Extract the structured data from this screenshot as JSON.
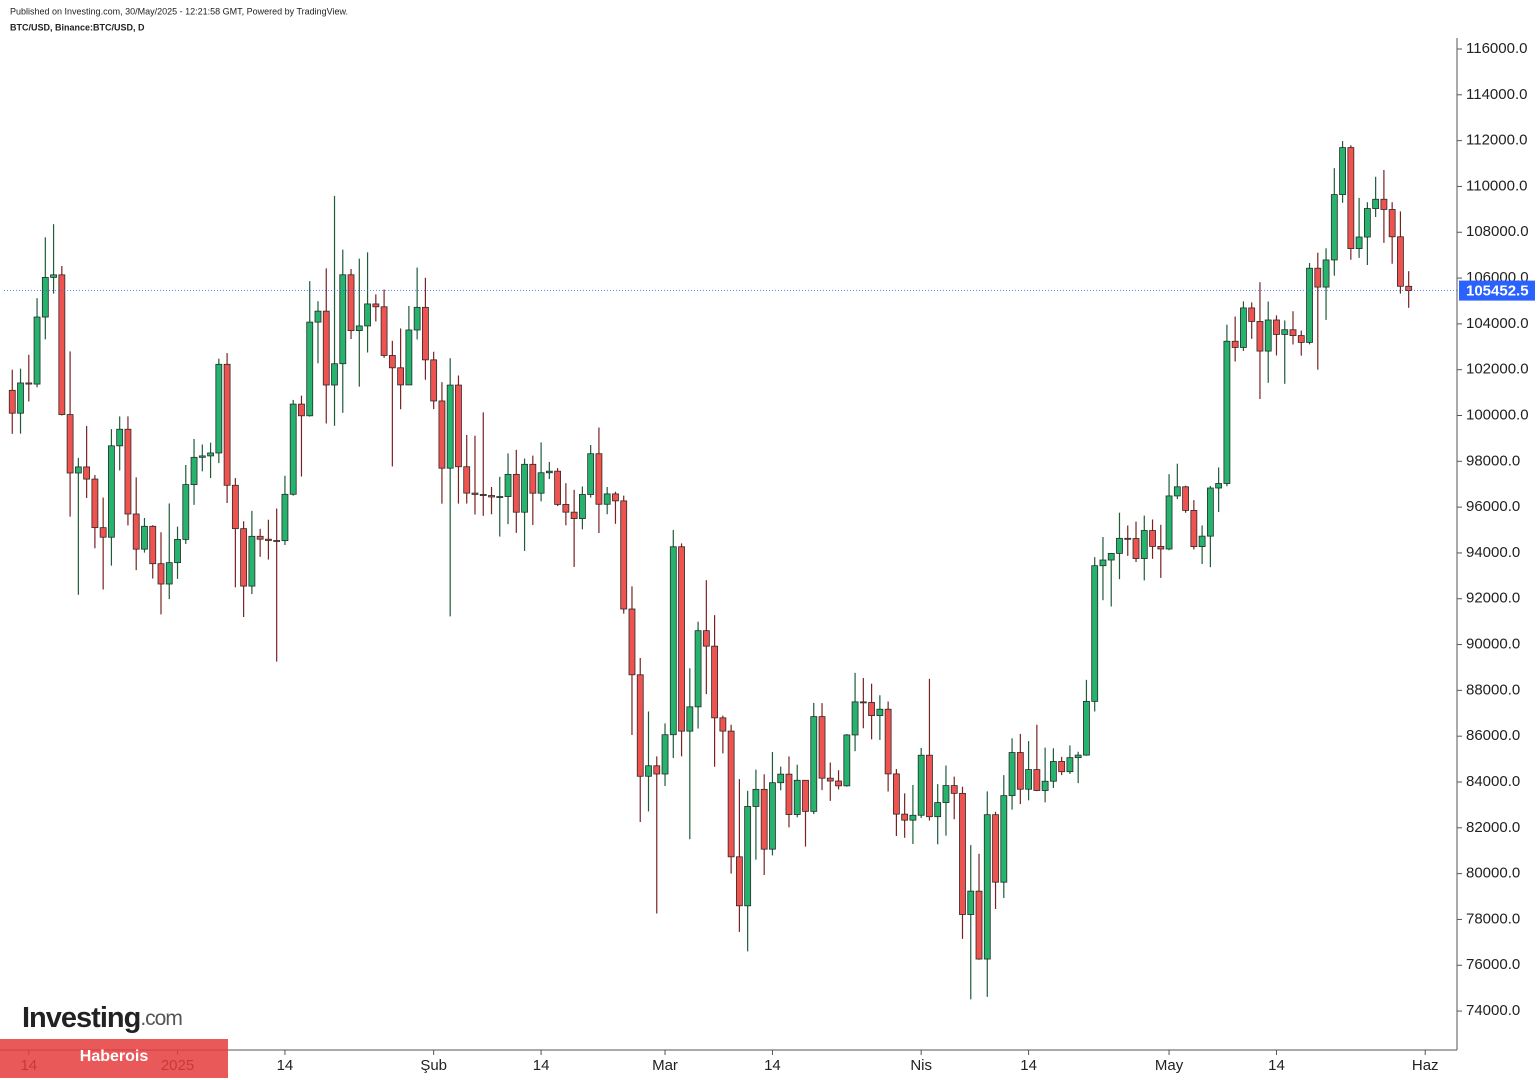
{
  "chart_data": {
    "type": "candlestick",
    "title": "BTC/USD, Binance:BTC/USD, D",
    "subtitle": "Published on Investing.com, 30/May/2025 - 12:21:58 GMT, Powered by TradingView.",
    "up_color": "#26b36d",
    "down_color": "#ef5350",
    "x": [
      "2024-12-12",
      "2024-12-13",
      "2024-12-14",
      "2024-12-15",
      "2024-12-16",
      "2024-12-17",
      "2024-12-18",
      "2024-12-19",
      "2024-12-20",
      "2024-12-21",
      "2024-12-22",
      "2024-12-23",
      "2024-12-24",
      "2024-12-25",
      "2024-12-26",
      "2024-12-27",
      "2024-12-28",
      "2024-12-29",
      "2024-12-30",
      "2024-12-31",
      "2025-01-01",
      "2025-01-02",
      "2025-01-03",
      "2025-01-04",
      "2025-01-05",
      "2025-01-06",
      "2025-01-07",
      "2025-01-08",
      "2025-01-09",
      "2025-01-10",
      "2025-01-11",
      "2025-01-12",
      "2025-01-13",
      "2025-01-14",
      "2025-01-15",
      "2025-01-16",
      "2025-01-17",
      "2025-01-18",
      "2025-01-19",
      "2025-01-20",
      "2025-01-21",
      "2025-01-22",
      "2025-01-23",
      "2025-01-24",
      "2025-01-25",
      "2025-01-26",
      "2025-01-27",
      "2025-01-28",
      "2025-01-29",
      "2025-01-30",
      "2025-01-31",
      "2025-02-01",
      "2025-02-02",
      "2025-02-03",
      "2025-02-04",
      "2025-02-05",
      "2025-02-06",
      "2025-02-07",
      "2025-02-08",
      "2025-02-09",
      "2025-02-10",
      "2025-02-11",
      "2025-02-12",
      "2025-02-13",
      "2025-02-14",
      "2025-02-15",
      "2025-02-16",
      "2025-02-17",
      "2025-02-18",
      "2025-02-19",
      "2025-02-20",
      "2025-02-21",
      "2025-02-22",
      "2025-02-23",
      "2025-02-24",
      "2025-02-25",
      "2025-02-26",
      "2025-02-27",
      "2025-02-28",
      "2025-03-01",
      "2025-03-02",
      "2025-03-03",
      "2025-03-04",
      "2025-03-05",
      "2025-03-06",
      "2025-03-07",
      "2025-03-08",
      "2025-03-09",
      "2025-03-10",
      "2025-03-11",
      "2025-03-12",
      "2025-03-13",
      "2025-03-14",
      "2025-03-15",
      "2025-03-16",
      "2025-03-17",
      "2025-03-18",
      "2025-03-19",
      "2025-03-20",
      "2025-03-21",
      "2025-03-22",
      "2025-03-23",
      "2025-03-24",
      "2025-03-25",
      "2025-03-26",
      "2025-03-27",
      "2025-03-28",
      "2025-03-29",
      "2025-03-30",
      "2025-03-31",
      "2025-04-01",
      "2025-04-02",
      "2025-04-03",
      "2025-04-04",
      "2025-04-05",
      "2025-04-06",
      "2025-04-07",
      "2025-04-08",
      "2025-04-09",
      "2025-04-10",
      "2025-04-11",
      "2025-04-12",
      "2025-04-13",
      "2025-04-14",
      "2025-04-15",
      "2025-04-16",
      "2025-04-17",
      "2025-04-18",
      "2025-04-19",
      "2025-04-20",
      "2025-04-21",
      "2025-04-22",
      "2025-04-23",
      "2025-04-24",
      "2025-04-25",
      "2025-04-26",
      "2025-04-27",
      "2025-04-28",
      "2025-04-29",
      "2025-04-30",
      "2025-05-01",
      "2025-05-02",
      "2025-05-03",
      "2025-05-04",
      "2025-05-05",
      "2025-05-06",
      "2025-05-07",
      "2025-05-08",
      "2025-05-09",
      "2025-05-10",
      "2025-05-11",
      "2025-05-12",
      "2025-05-13",
      "2025-05-14",
      "2025-05-15",
      "2025-05-16",
      "2025-05-17",
      "2025-05-18",
      "2025-05-19",
      "2025-05-20",
      "2025-05-21",
      "2025-05-22",
      "2025-05-23",
      "2025-05-24",
      "2025-05-25",
      "2025-05-26",
      "2025-05-27",
      "2025-05-28",
      "2025-05-29",
      "2025-05-30"
    ],
    "open": [
      101100,
      100100,
      101420,
      101372,
      104298,
      106029,
      106140,
      100041,
      97490,
      97755,
      97224,
      95104,
      94686,
      98676,
      99400,
      95700,
      94164,
      95163,
      93530,
      92643,
      93576,
      94591,
      96984,
      98174,
      98236,
      98364,
      102235,
      96954,
      95060,
      92552,
      94726,
      94599,
      94545,
      94536,
      96560,
      100497,
      99987,
      104077,
      104556,
      101331,
      102260,
      106143,
      103706,
      103910,
      104870,
      104746,
      102620,
      102082,
      101335,
      103733,
      104722,
      102429,
      100635,
      97700,
      101328,
      97763,
      96612,
      96554,
      96506,
      96444,
      96462,
      97430,
      95778,
      97869,
      96608,
      97500,
      97569,
      96118,
      95780,
      95500,
      96551,
      98331,
      96125,
      96577,
      96273,
      91552,
      88680,
      84250,
      84708,
      84349,
      86064,
      94270,
      86220,
      87281,
      90606,
      89931,
      86801,
      86222,
      80734,
      78595,
      82932,
      83680,
      81067,
      83969,
      84343,
      82580,
      84075,
      82718,
      86854,
      84167,
      84043,
      83832,
      86054,
      87498,
      87471,
      86900,
      87177,
      84353,
      82597,
      82334,
      82548,
      85169,
      82485,
      83102,
      83843,
      83504,
      78214,
      79235,
      76271,
      82573,
      79626,
      83404,
      85287,
      83684,
      84542,
      83629,
      84033,
      84895,
      84450,
      85063,
      85174,
      87519,
      93442,
      93691,
      93980,
      94638,
      94630,
      93755,
      94978,
      94284,
      94172,
      96489,
      96887,
      95856,
      94277,
      94733,
      96834,
      97032,
      103241,
      102971,
      104696,
      104106,
      102812,
      104169,
      103539,
      103744,
      103489,
      103191,
      106430,
      105606,
      106791,
      109643,
      111696,
      107287,
      107791,
      109035,
      109440,
      108994,
      107802,
      105641
    ],
    "high": [
      102000,
      102045,
      102650,
      105120,
      107780,
      108353,
      106524,
      102800,
      98150,
      99540,
      97400,
      96416,
      99404,
      99960,
      99963,
      97300,
      95525,
      95209,
      94903,
      96161,
      95150,
      97839,
      98976,
      98734,
      98813,
      102480,
      102724,
      97268,
      95382,
      95837,
      95050,
      95450,
      95940,
      97371,
      100681,
      100866,
      105865,
      104988,
      106422,
      109588,
      107240,
      106394,
      106850,
      107120,
      105286,
      105500,
      103260,
      103800,
      104782,
      106457,
      106012,
      102783,
      101456,
      102500,
      101745,
      99149,
      99120,
      100137,
      96880,
      97323,
      98345,
      98500,
      98119,
      98249,
      98826,
      97972,
      97704,
      97046,
      96753,
      96899,
      98711,
      99475,
      96880,
      96671,
      96503,
      92540,
      89414,
      87078,
      85120,
      86558,
      95000,
      94416,
      88967,
      91000,
      92810,
      91283,
      86897,
      86500,
      84123,
      83617,
      84539,
      84336,
      85309,
      84672,
      85117,
      84756,
      84075,
      87453,
      87443,
      84850,
      84513,
      86094,
      88765,
      88542,
      88292,
      87786,
      87515,
      84567,
      83505,
      83870,
      85487,
      88500,
      83909,
      84720,
      84234,
      83795,
      81243,
      80867,
      83588,
      82700,
      84300,
      85905,
      86100,
      85785,
      86500,
      85500,
      85470,
      85095,
      85597,
      85320,
      88460,
      93817,
      94696,
      94000,
      95758,
      95199,
      95369,
      95630,
      95461,
      95228,
      97437,
      97895,
      96935,
      96304,
      95199,
      96920,
      97732,
      103969,
      104324,
      104984,
      104937,
      105819,
      104976,
      104370,
      104150,
      104550,
      103709,
      106660,
      107108,
      107300,
      110797,
      111980,
      111800,
      109500,
      109310,
      110422,
      110718,
      109313,
      108910,
      106300
    ],
    "low": [
      99200,
      99206,
      100609,
      101228,
      103322,
      105321,
      100000,
      95587,
      92175,
      96398,
      94202,
      92403,
      93448,
      97600,
      95200,
      93250,
      94014,
      92881,
      91317,
      91984,
      92867,
      94392,
      96100,
      97562,
      97270,
      97921,
      96181,
      92500,
      91203,
      92206,
      93831,
      93712,
      89256,
      94346,
      96500,
      97335,
      99950,
      102277,
      99651,
      99550,
      100119,
      103339,
      101262,
      102750,
      104106,
      102520,
      97777,
      100272,
      101328,
      103320,
      101560,
      100279,
      96150,
      91231,
      96150,
      96155,
      95676,
      95620,
      95688,
      94713,
      95256,
      94876,
      94088,
      95217,
      96252,
      97223,
      96046,
      95205,
      93388,
      95029,
      96415,
      94871,
      95688,
      95270,
      91350,
      86050,
      82256,
      82716,
      78258,
      83824,
      85050,
      85117,
      81500,
      86334,
      87836,
      84667,
      85248,
      80000,
      77459,
      76606,
      80607,
      79939,
      80794,
      83639,
      82017,
      82457,
      81180,
      82600,
      83647,
      83175,
      83674,
      83794,
      85346,
      86346,
      85861,
      85837,
      83585,
      81644,
      81565,
      81293,
      82429,
      82320,
      81282,
      81659,
      82373,
      77153,
      74508,
      76239,
      74620,
      78456,
      78935,
      82792,
      83034,
      83200,
      83600,
      83112,
      83736,
      84300,
      84353,
      83949,
      85143,
      87076,
      91935,
      91660,
      92855,
      93870,
      93602,
      92800,
      93742,
      92910,
      94118,
      96350,
      95753,
      94151,
      93514,
      93377,
      95784,
      96913,
      102355,
      102818,
      103346,
      100718,
      101429,
      102621,
      101383,
      103100,
      102612,
      103105,
      102000,
      104173,
      106101,
      109285,
      106800,
      106880,
      106570,
      108666,
      107537,
      106625,
      105322,
      104700
    ],
    "close": [
      100100,
      101420,
      101372,
      104298,
      106029,
      106140,
      100041,
      97490,
      97755,
      97224,
      95104,
      94686,
      98676,
      99400,
      95700,
      94164,
      95163,
      93530,
      92643,
      93576,
      94591,
      96984,
      98174,
      98236,
      98364,
      102235,
      96954,
      95060,
      92552,
      94726,
      94599,
      94545,
      94536,
      96560,
      100497,
      99987,
      104077,
      104556,
      101331,
      102260,
      106143,
      103706,
      103910,
      104870,
      104746,
      102620,
      102082,
      101335,
      103733,
      104722,
      102429,
      100635,
      97700,
      101328,
      97763,
      96612,
      96554,
      96506,
      96444,
      96462,
      97430,
      95778,
      97869,
      96608,
      97500,
      97569,
      96118,
      95780,
      95500,
      96551,
      98331,
      96125,
      96577,
      96273,
      91552,
      88680,
      84250,
      84708,
      84349,
      86064,
      94270,
      86220,
      87281,
      90606,
      89931,
      86801,
      86222,
      80734,
      78595,
      82932,
      83680,
      81067,
      83969,
      84343,
      82580,
      84075,
      82718,
      86854,
      84167,
      84043,
      83832,
      86054,
      87498,
      87471,
      86900,
      87177,
      84353,
      82597,
      82334,
      82548,
      85169,
      82485,
      83102,
      83843,
      83504,
      78214,
      79235,
      76271,
      82573,
      79626,
      83404,
      85287,
      83684,
      84542,
      83629,
      84033,
      84895,
      84450,
      85063,
      85174,
      87519,
      93442,
      93691,
      93980,
      94638,
      94630,
      93755,
      94978,
      94284,
      94172,
      96489,
      96887,
      95856,
      94277,
      94733,
      96834,
      97032,
      103241,
      102971,
      104696,
      104106,
      102812,
      104169,
      103539,
      103744,
      103489,
      103191,
      106430,
      105606,
      106791,
      109643,
      111696,
      107287,
      107791,
      109035,
      109440,
      108994,
      107802,
      105641,
      105452.5
    ],
    "last_price": 105452.5,
    "last_price_color": "#2962ff",
    "xlim": [
      "2024-12-11",
      "2025-06-04"
    ],
    "xticks": [
      {
        "value": "2024-12-14",
        "label": "14"
      },
      {
        "value": "2025-01-01",
        "label": "2025"
      },
      {
        "value": "2025-01-14",
        "label": "14"
      },
      {
        "value": "2025-02-01",
        "label": "Şub"
      },
      {
        "value": "2025-02-14",
        "label": "14"
      },
      {
        "value": "2025-03-01",
        "label": "Mar"
      },
      {
        "value": "2025-03-14",
        "label": "14"
      },
      {
        "value": "2025-04-01",
        "label": "Nis"
      },
      {
        "value": "2025-04-14",
        "label": "14"
      },
      {
        "value": "2025-05-01",
        "label": "May"
      },
      {
        "value": "2025-05-14",
        "label": "14"
      },
      {
        "value": "2025-06-01",
        "label": "Haz"
      }
    ],
    "ylim": [
      72300,
      116480
    ],
    "yticks": [
      {
        "value": 74000,
        "label": "74000.0"
      },
      {
        "value": 76000,
        "label": "76000.0"
      },
      {
        "value": 78000,
        "label": "78000.0"
      },
      {
        "value": 80000,
        "label": "80000.0"
      },
      {
        "value": 82000,
        "label": "82000.0"
      },
      {
        "value": 84000,
        "label": "84000.0"
      },
      {
        "value": 86000,
        "label": "86000.0"
      },
      {
        "value": 88000,
        "label": "88000.0"
      },
      {
        "value": 90000,
        "label": "90000.0"
      },
      {
        "value": 92000,
        "label": "92000.0"
      },
      {
        "value": 94000,
        "label": "94000.0"
      },
      {
        "value": 96000,
        "label": "96000.0"
      },
      {
        "value": 98000,
        "label": "98000.0"
      },
      {
        "value": 100000,
        "label": "100000.0"
      },
      {
        "value": 102000,
        "label": "102000.0"
      },
      {
        "value": 104000,
        "label": "104000.0"
      },
      {
        "value": 106000,
        "label": "106000.0"
      },
      {
        "value": 108000,
        "label": "108000.0"
      },
      {
        "value": 110000,
        "label": "110000.0"
      },
      {
        "value": 112000,
        "label": "112000.0"
      },
      {
        "value": 114000,
        "label": "114000.0"
      },
      {
        "value": 116000,
        "label": "116000.0"
      }
    ],
    "grid": false
  },
  "overlay": {
    "logo_main": "Investing",
    "logo_suffix": ".com",
    "banner": "Haberois"
  }
}
